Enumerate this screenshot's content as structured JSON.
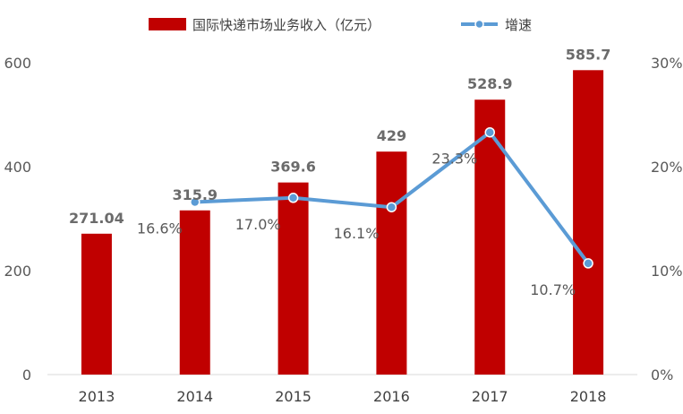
{
  "chart_data": {
    "type": "bar",
    "categories": [
      "2013",
      "2014",
      "2015",
      "2016",
      "2017",
      "2018"
    ],
    "series": [
      {
        "name": "国际快递市场业务收入（亿元）",
        "type": "bar",
        "axis": "left",
        "values": [
          271.04,
          315.9,
          369.6,
          429,
          528.9,
          585.7
        ],
        "labels": [
          "271.04",
          "315.9",
          "369.6",
          "429",
          "528.9",
          "585.7"
        ],
        "color": "#C00000"
      },
      {
        "name": "增速",
        "type": "line",
        "axis": "right",
        "values": [
          null,
          16.6,
          17.0,
          16.1,
          23.3,
          10.7
        ],
        "labels": [
          "",
          "16.6%",
          "17.0%",
          "16.1%",
          "23.3%",
          "10.7%"
        ],
        "color": "#5B9BD5"
      }
    ],
    "y_left": {
      "range": [
        0,
        600
      ],
      "ticks": [
        "0",
        "200",
        "400",
        "600"
      ]
    },
    "y_right": {
      "range": [
        0,
        30
      ],
      "ticks": [
        "0%",
        "10%",
        "20%",
        "30%"
      ]
    },
    "legend": "top-center",
    "grid": false
  }
}
